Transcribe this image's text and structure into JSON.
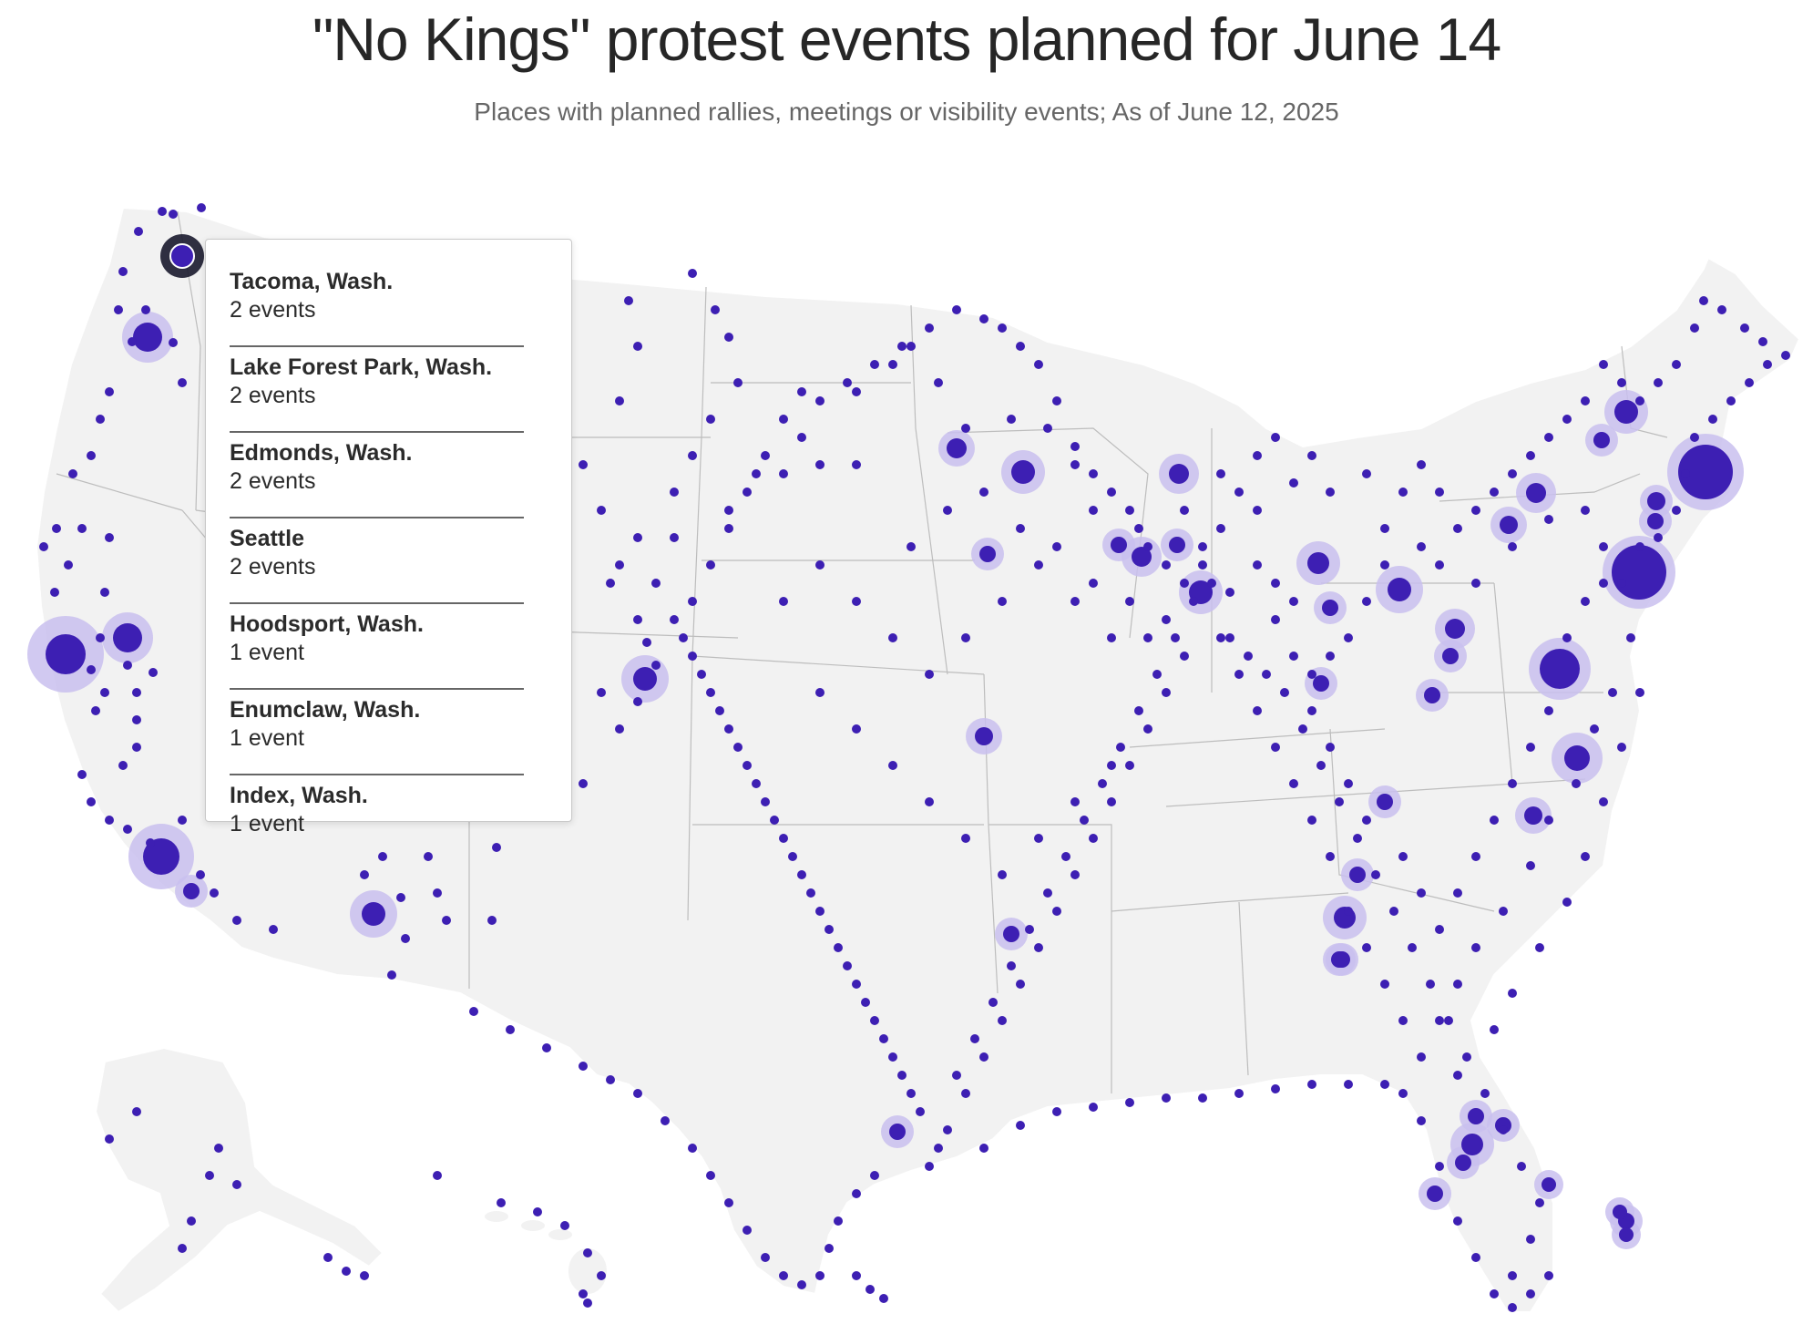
{
  "header": {
    "title": "\"No Kings\" protest events planned for June 14",
    "subtitle": "Places with planned rallies, meetings or visibility events; As of June 12, 2025"
  },
  "map": {
    "marker_color": "#3d1fb3",
    "halo_color": "#c9c0ee",
    "land_color": "#f2f2f2",
    "highlight_ring_color": "#1a1a2e",
    "tooltip": {
      "items": [
        {
          "place": "Tacoma, Wash.",
          "count": "2 events"
        },
        {
          "place": "Lake Forest Park, Wash.",
          "count": "2 events"
        },
        {
          "place": "Edmonds, Wash.",
          "count": "2 events"
        },
        {
          "place": "Seattle",
          "count": "2 events"
        },
        {
          "place": "Hoodsport, Wash.",
          "count": "1 event"
        },
        {
          "place": "Enumclaw, Wash.",
          "count": "1 event"
        },
        {
          "place": "Index, Wash.",
          "count": "1 event"
        }
      ]
    }
  }
}
